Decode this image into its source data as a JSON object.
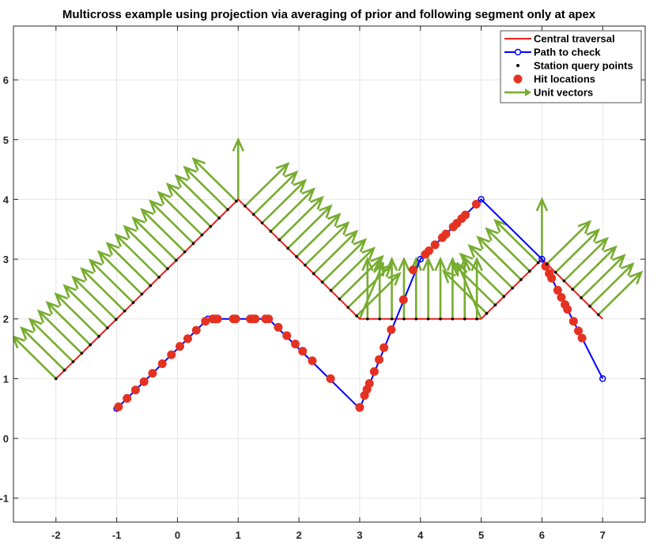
{
  "chart_data": {
    "type": "line",
    "title": "Multicross example using projection via averaging of prior and following segment only at apex",
    "xlabel": "",
    "ylabel": "",
    "xlim": [
      -2.7,
      7.7
    ],
    "ylim": [
      -1.4,
      6.9
    ],
    "xticks": [
      -2,
      -1,
      0,
      1,
      2,
      3,
      4,
      5,
      6,
      7
    ],
    "yticks": [
      -1,
      0,
      1,
      2,
      3,
      4,
      5,
      6
    ],
    "grid": true,
    "legend_position": "top-right",
    "legend": [
      {
        "label": "Central traversal",
        "kind": "line"
      },
      {
        "label": "Path to check",
        "kind": "line-circle"
      },
      {
        "label": "Station query points",
        "kind": "dot"
      },
      {
        "label": "Hit locations",
        "kind": "big-dot"
      },
      {
        "label": "Unit vectors",
        "kind": "arrow"
      }
    ],
    "colors": {
      "central": "#e8211c",
      "path": "#0000ff",
      "station": "#000000",
      "hit": "#e43222",
      "vector": "#77ac30",
      "grid": "#e6e6e6",
      "axis": "#262626"
    },
    "central_traversal": {
      "x": [
        -2,
        1,
        3,
        5,
        6,
        7
      ],
      "y": [
        1,
        4,
        2,
        2,
        3,
        2
      ]
    },
    "path_to_check": {
      "x": [
        -1,
        0.5,
        1.5,
        3,
        4,
        5,
        6,
        7
      ],
      "y": [
        0.5,
        2,
        2,
        0.5,
        3,
        4,
        3,
        1
      ]
    },
    "hit_locations": [
      {
        "x": -0.97,
        "y": 0.53
      },
      {
        "x": -0.83,
        "y": 0.67
      },
      {
        "x": -0.69,
        "y": 0.81
      },
      {
        "x": -0.55,
        "y": 0.95
      },
      {
        "x": -0.41,
        "y": 1.09
      },
      {
        "x": -0.25,
        "y": 1.25
      },
      {
        "x": -0.1,
        "y": 1.4
      },
      {
        "x": 0.04,
        "y": 1.54
      },
      {
        "x": 0.17,
        "y": 1.67
      },
      {
        "x": 0.31,
        "y": 1.81
      },
      {
        "x": 0.46,
        "y": 1.96
      },
      {
        "x": 0.58,
        "y": 2
      },
      {
        "x": 0.62,
        "y": 2
      },
      {
        "x": 0.66,
        "y": 2
      },
      {
        "x": 0.92,
        "y": 2
      },
      {
        "x": 0.96,
        "y": 2
      },
      {
        "x": 1.2,
        "y": 2
      },
      {
        "x": 1.24,
        "y": 2
      },
      {
        "x": 1.28,
        "y": 2
      },
      {
        "x": 1.45,
        "y": 2
      },
      {
        "x": 1.5,
        "y": 2
      },
      {
        "x": 1.66,
        "y": 1.86
      },
      {
        "x": 1.8,
        "y": 1.72
      },
      {
        "x": 1.94,
        "y": 1.58
      },
      {
        "x": 2.06,
        "y": 1.46
      },
      {
        "x": 2.22,
        "y": 1.3
      },
      {
        "x": 2.52,
        "y": 1
      },
      {
        "x": 3,
        "y": 0.52
      },
      {
        "x": 3.08,
        "y": 0.72
      },
      {
        "x": 3.12,
        "y": 0.82
      },
      {
        "x": 3.16,
        "y": 0.92
      },
      {
        "x": 3.24,
        "y": 1.12
      },
      {
        "x": 3.32,
        "y": 1.32
      },
      {
        "x": 3.4,
        "y": 1.52
      },
      {
        "x": 3.52,
        "y": 1.82
      },
      {
        "x": 3.72,
        "y": 2.32
      },
      {
        "x": 3.88,
        "y": 2.82
      },
      {
        "x": 4.08,
        "y": 3.08
      },
      {
        "x": 4.14,
        "y": 3.14
      },
      {
        "x": 4.24,
        "y": 3.24
      },
      {
        "x": 4.36,
        "y": 3.36
      },
      {
        "x": 4.42,
        "y": 3.42
      },
      {
        "x": 4.54,
        "y": 3.54
      },
      {
        "x": 4.6,
        "y": 3.6
      },
      {
        "x": 4.68,
        "y": 3.68
      },
      {
        "x": 4.74,
        "y": 3.74
      },
      {
        "x": 4.92,
        "y": 3.92
      },
      {
        "x": 6.06,
        "y": 2.88
      },
      {
        "x": 6.12,
        "y": 2.76
      },
      {
        "x": 6.16,
        "y": 2.68
      },
      {
        "x": 6.26,
        "y": 2.48
      },
      {
        "x": 6.32,
        "y": 2.36
      },
      {
        "x": 6.38,
        "y": 2.24
      },
      {
        "x": 6.42,
        "y": 2.16
      },
      {
        "x": 6.52,
        "y": 1.96
      },
      {
        "x": 6.6,
        "y": 1.8
      },
      {
        "x": 6.66,
        "y": 1.68
      }
    ],
    "station_spacing": 0.2,
    "unit_vectors": {
      "description": "normal unit vectors at each station; at each apex the prior and following segment normals are averaged",
      "length": 1
    }
  }
}
